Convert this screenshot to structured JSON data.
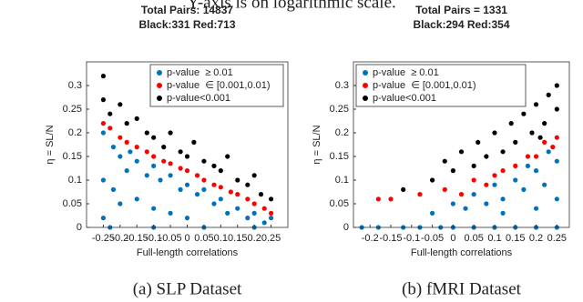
{
  "header_text": "Y-axis is on logarithmic scale.",
  "chart_data": [
    {
      "type": "scatter",
      "title": "Total Pairs: 14837",
      "subtitle": "Black:331 Red:713",
      "caption": "(a) SLP Dataset",
      "xlabel": "Full-length correlations",
      "ylabel": "η = SL/N",
      "xlim": [
        -0.3,
        0.3
      ],
      "ylim": [
        0,
        0.35
      ],
      "xticks": [
        -0.25,
        -0.2,
        -0.15,
        -0.1,
        -0.05,
        0,
        0.05,
        0.1,
        0.15,
        0.2,
        0.25
      ],
      "yticks": [
        0,
        0.05,
        0.1,
        0.15,
        0.2,
        0.25,
        0.3
      ],
      "legend": "upper right",
      "series": [
        {
          "name": "p-value  ≥ 0.01",
          "color": "#0072bd",
          "x": [
            -0.25,
            -0.25,
            -0.25,
            -0.22,
            -0.22,
            -0.2,
            -0.2,
            -0.18,
            -0.17,
            -0.15,
            -0.15,
            -0.12,
            -0.1,
            -0.1,
            -0.08,
            -0.05,
            -0.05,
            -0.02,
            0,
            0,
            0.03,
            0.05,
            0.08,
            0.1,
            0.12,
            0.15,
            0.18,
            0.2,
            0.23,
            0.25,
            -0.23,
            -0.1,
            0.05,
            0.2
          ],
          "values": [
            0.2,
            0.1,
            0.02,
            0.17,
            0.08,
            0.15,
            0.05,
            0.12,
            0.16,
            0.14,
            0.06,
            0.11,
            0.13,
            0.04,
            0.1,
            0.11,
            0.03,
            0.08,
            0.09,
            0.02,
            0.07,
            0.08,
            0.05,
            0.06,
            0.03,
            0.04,
            0.02,
            0.03,
            0.01,
            0.02,
            0,
            0,
            0,
            0
          ]
        },
        {
          "name": "p-value  ∈ [0.001,0.01)",
          "color": "#ff0000",
          "x": [
            -0.25,
            -0.23,
            -0.2,
            -0.18,
            -0.15,
            -0.12,
            -0.1,
            -0.07,
            -0.05,
            -0.02,
            0,
            0.03,
            0.05,
            0.08,
            0.1,
            0.13,
            0.15,
            0.18,
            0.2,
            0.23,
            0.25
          ],
          "values": [
            0.22,
            0.21,
            0.19,
            0.18,
            0.17,
            0.16,
            0.15,
            0.14,
            0.135,
            0.125,
            0.12,
            0.11,
            0.1,
            0.09,
            0.085,
            0.075,
            0.07,
            0.06,
            0.05,
            0.04,
            0.03
          ]
        },
        {
          "name": "p-value<0.001",
          "color": "#000000",
          "x": [
            -0.25,
            -0.25,
            -0.23,
            -0.2,
            -0.18,
            -0.15,
            -0.12,
            -0.1,
            -0.07,
            -0.05,
            -0.02,
            0,
            0.02,
            0.05,
            0.08,
            0.1,
            0.12,
            0.15,
            0.18,
            0.2,
            0.22,
            0.25
          ],
          "values": [
            0.32,
            0.27,
            0.24,
            0.26,
            0.22,
            0.23,
            0.2,
            0.19,
            0.17,
            0.2,
            0.16,
            0.15,
            0.18,
            0.14,
            0.13,
            0.12,
            0.15,
            0.1,
            0.09,
            0.11,
            0.07,
            0.06
          ]
        }
      ]
    },
    {
      "type": "scatter",
      "title": "Total Pairs = 1331",
      "subtitle": "Black:294 Red:354",
      "caption": "(b) fMRI Dataset",
      "xlabel": "Full-length correlations",
      "ylabel": "η = SL/N",
      "xlim": [
        -0.24,
        0.28
      ],
      "ylim": [
        0,
        0.35
      ],
      "xticks": [
        -0.2,
        -0.15,
        -0.1,
        -0.05,
        0,
        0.05,
        0.1,
        0.15,
        0.2,
        0.25
      ],
      "yticks": [
        0,
        0.05,
        0.1,
        0.15,
        0.2,
        0.25,
        0.3
      ],
      "legend": "upper left",
      "series": [
        {
          "name": "p-value  ≥ 0.01",
          "color": "#0072bd",
          "x": [
            -0.22,
            -0.18,
            -0.12,
            -0.08,
            -0.03,
            0,
            0.05,
            0.1,
            0.15,
            0.2,
            0.25,
            -0.05,
            0,
            0.03,
            0.05,
            0.08,
            0.1,
            0.12,
            0.15,
            0.17,
            0.2,
            0.22,
            0.25,
            0.25,
            0.18,
            0.23,
            0.12,
            0.2
          ],
          "values": [
            0,
            0,
            0,
            0,
            0,
            0,
            0,
            0,
            0,
            0,
            0,
            0.03,
            0.05,
            0.04,
            0.07,
            0.05,
            0.09,
            0.06,
            0.1,
            0.08,
            0.12,
            0.09,
            0.14,
            0.06,
            0.13,
            0.16,
            0.03,
            0.04
          ]
        },
        {
          "name": "p-value  ∈ [0.001,0.01)",
          "color": "#ff0000",
          "x": [
            -0.18,
            -0.15,
            -0.08,
            -0.02,
            0.02,
            0.05,
            0.08,
            0.1,
            0.12,
            0.15,
            0.18,
            0.2,
            0.22,
            0.25,
            0.24
          ],
          "values": [
            0.06,
            0.06,
            0.07,
            0.08,
            0.07,
            0.1,
            0.09,
            0.11,
            0.12,
            0.13,
            0.15,
            0.15,
            0.18,
            0.19,
            0.17
          ]
        },
        {
          "name": "p-value<0.001",
          "color": "#000000",
          "x": [
            -0.12,
            -0.05,
            -0.02,
            0,
            0.02,
            0.05,
            0.06,
            0.08,
            0.1,
            0.12,
            0.14,
            0.15,
            0.17,
            0.19,
            0.2,
            0.22,
            0.23,
            0.25,
            0.25,
            0.21
          ],
          "values": [
            0.08,
            0.1,
            0.14,
            0.12,
            0.16,
            0.13,
            0.18,
            0.15,
            0.2,
            0.16,
            0.22,
            0.18,
            0.24,
            0.2,
            0.26,
            0.22,
            0.28,
            0.25,
            0.3,
            0.19
          ]
        }
      ]
    }
  ]
}
